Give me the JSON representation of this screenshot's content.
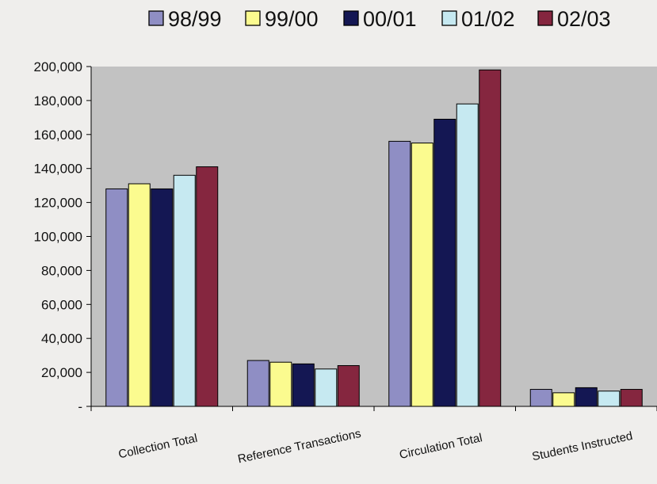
{
  "chart_data": {
    "type": "bar",
    "categories": [
      "Collection Total",
      "Reference Transactions",
      "Circulation Total",
      "Students Instructed"
    ],
    "series": [
      {
        "name": "98/99",
        "color": "#8f8ec4",
        "values": [
          128000,
          27000,
          156000,
          10000
        ]
      },
      {
        "name": "99/00",
        "color": "#fbfb8f",
        "values": [
          131000,
          26000,
          155000,
          8000
        ]
      },
      {
        "name": "00/01",
        "color": "#141753",
        "values": [
          128000,
          25000,
          169000,
          11000
        ]
      },
      {
        "name": "01/02",
        "color": "#c6e9f1",
        "values": [
          136000,
          22000,
          178000,
          9000
        ]
      },
      {
        "name": "02/03",
        "color": "#85263f",
        "values": [
          141000,
          24000,
          198000,
          10000
        ]
      }
    ],
    "ylim": [
      0,
      200000
    ],
    "yticks": [
      0,
      20000,
      40000,
      60000,
      80000,
      100000,
      120000,
      140000,
      160000,
      180000,
      200000
    ],
    "ytick_labels": [
      "-",
      "20,000",
      "40,000",
      "60,000",
      "80,000",
      "100,000",
      "120,000",
      "140,000",
      "160,000",
      "180,000",
      "200,000"
    ],
    "title": "",
    "xlabel": "",
    "ylabel": "",
    "legend_position": "top",
    "plot_background": "#c2c2c2",
    "grid": false
  }
}
